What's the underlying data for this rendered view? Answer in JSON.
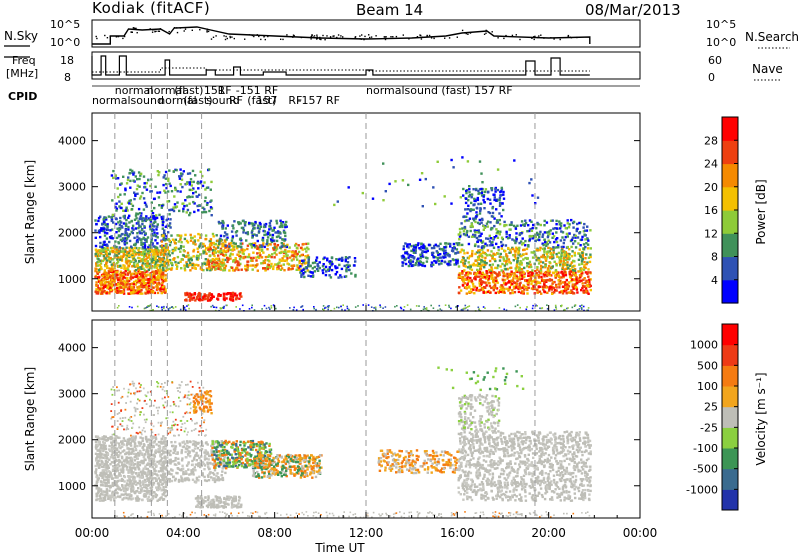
{
  "header": {
    "station": "Kodiak (fitACF)",
    "beam": "Beam 14",
    "date": "08/Mar/2013"
  },
  "strip_panels": {
    "nsky_label": "N.Sky",
    "nsky_ticks": [
      "10^5",
      "10^0"
    ],
    "nsearch_label": "N.Search",
    "freq_label_1": "Freq",
    "freq_label_2": "[MHz]",
    "freq_ticks": [
      "18",
      "8"
    ],
    "nave_ticks": [
      "60",
      "0"
    ],
    "nave_label": "Nave",
    "cpid_label": "CPID",
    "cpid_labels": [
      {
        "text": "normal",
        "t": 1.0,
        "row": 0
      },
      {
        "text": "normalsound",
        "t": 0.0,
        "row": 1
      },
      {
        "text": "normal",
        "t": 2.4,
        "row": 0
      },
      {
        "text": "(fast)",
        "t": 3.6,
        "row": 0
      },
      {
        "text": "normal",
        "t": 2.9,
        "row": 1
      },
      {
        "text": "(fast)",
        "t": 4.0,
        "row": 1
      },
      {
        "text": "sound",
        "t": 5.0,
        "row": 1
      },
      {
        "text": "(fast)",
        "t": 6.8,
        "row": 1
      },
      {
        "text": "151",
        "t": 4.9,
        "row": 0
      },
      {
        "text": "RF",
        "t": 5.5,
        "row": 0
      },
      {
        "text": "RF",
        "t": 6.0,
        "row": 1
      },
      {
        "text": "157",
        "t": 7.2,
        "row": 1
      },
      {
        "text": "RF",
        "t": 8.6,
        "row": 1
      },
      {
        "text": "-151 RF",
        "t": 6.3,
        "row": 0
      },
      {
        "text": "-157 RF",
        "t": 9.0,
        "row": 1
      },
      {
        "text": "normalsound (fast) 157 RF",
        "t": 12.0,
        "row": 0
      }
    ]
  },
  "chart_data": [
    {
      "type": "heatmap",
      "name": "power",
      "xlabel": "",
      "ylabel": "Slant Range [km]",
      "xlim": [
        0,
        24
      ],
      "ylim": [
        300,
        4600
      ],
      "yticks": [
        1000,
        2000,
        3000,
        4000
      ],
      "colorbar": {
        "label": "Power [dB]",
        "ticks": [
          "28",
          "24",
          "20",
          "16",
          "12",
          "8",
          "4"
        ],
        "colors": [
          "#0000ff",
          "#2f52b4",
          "#40915a",
          "#8ecb38",
          "#f4c000",
          "#f58a00",
          "#ee4010",
          "#ff0000"
        ]
      }
    },
    {
      "type": "heatmap",
      "name": "velocity",
      "xlabel": "Time UT",
      "ylabel": "Slant Range [km]",
      "xlim": [
        0,
        24
      ],
      "ylim": [
        300,
        4600
      ],
      "xticks": [
        "00:00",
        "04:00",
        "08:00",
        "12:00",
        "16:00",
        "20:00",
        "00:00"
      ],
      "yticks": [
        1000,
        2000,
        3000,
        4000
      ],
      "colorbar": {
        "label": "Velocity [m s⁻¹]",
        "ticks": [
          "1000",
          "500",
          "100",
          "25",
          "-25",
          "-100",
          "-500",
          "-1000"
        ],
        "colors": [
          "#2233aa",
          "#3a6b8f",
          "#3c9555",
          "#8bd040",
          "#bebeb7",
          "#f2a51d",
          "#f57b11",
          "#ee3a16",
          "#ff0000"
        ]
      }
    }
  ]
}
